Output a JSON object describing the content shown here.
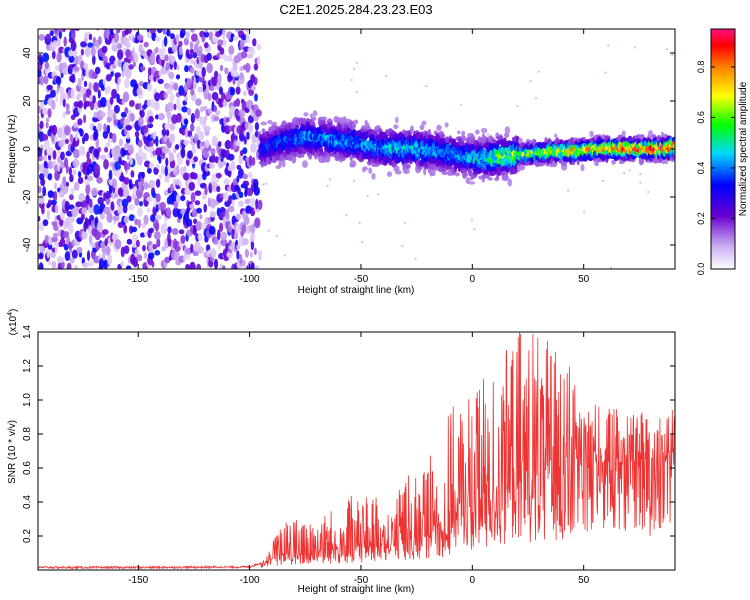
{
  "chart_data": [
    {
      "type": "heatmap",
      "title": "C2E1.2025.284.23.23.E03",
      "xlabel": "Height of straight line (km)",
      "ylabel": "Frequency (Hz)",
      "xlim": [
        -195,
        91
      ],
      "ylim": [
        -50,
        50
      ],
      "xticks": [
        -150,
        -100,
        -50,
        0,
        50
      ],
      "yticks": [
        -40,
        -20,
        0,
        20,
        40
      ],
      "noise_region_x": [
        -195,
        -95
      ],
      "signal_track": {
        "x": [
          -95,
          -85,
          -75,
          -65,
          -55,
          -45,
          -35,
          -25,
          -15,
          -5,
          5,
          15,
          25,
          35,
          45,
          55,
          65,
          75,
          85,
          91
        ],
        "freq_hz": [
          0,
          3,
          5,
          4,
          3,
          1,
          0,
          0,
          -1,
          -3,
          -4,
          -3,
          -2,
          -1,
          -1,
          0,
          0,
          0,
          0,
          1
        ],
        "amplitude": [
          0.25,
          0.3,
          0.35,
          0.35,
          0.35,
          0.35,
          0.4,
          0.4,
          0.35,
          0.35,
          0.45,
          0.55,
          0.6,
          0.65,
          0.7,
          0.75,
          0.8,
          0.85,
          0.85,
          0.85
        ]
      },
      "colorbar": {
        "label": "Normalized spectral amplitude",
        "range": [
          0.0,
          0.95
        ],
        "ticks": [
          0.0,
          0.2,
          0.4,
          0.6,
          0.8
        ],
        "tick_labels": [
          "0.0",
          "0.2",
          "0.4",
          "0.6",
          "0.8"
        ],
        "colors": [
          "#ffffff",
          "#6a00d0",
          "#0000ff",
          "#00d8ff",
          "#00ff00",
          "#ffff00",
          "#ff8000",
          "#ff0000",
          "#ff1080"
        ]
      }
    },
    {
      "type": "line",
      "xlabel": "Height of straight line (km)",
      "ylabel": "SNR (10 * v/v)",
      "y_multiplier_label": "(x10",
      "y_multiplier_exp": "4",
      "y_multiplier_close": ")",
      "xlim": [
        -195,
        91
      ],
      "ylim": [
        0,
        1.4
      ],
      "xticks": [
        -150,
        -100,
        -50,
        0,
        50
      ],
      "yticks": [
        0.2,
        0.4,
        0.6,
        0.8,
        1.0,
        1.2,
        1.4
      ],
      "ytick_labels": [
        "0.2",
        "0.4",
        "0.6",
        "0.8",
        "1.0",
        "1.2",
        "1.4"
      ],
      "series": [
        {
          "name": "SNR",
          "color": "#ee3333",
          "baseline_x": [
            -195,
            -150,
            -100,
            -93,
            -85,
            -70,
            -55,
            -40,
            -30,
            -20,
            -10,
            0,
            10,
            20,
            30,
            40,
            50,
            60,
            70,
            80,
            91
          ],
          "baseline_y": [
            0.015,
            0.015,
            0.018,
            0.05,
            0.09,
            0.11,
            0.13,
            0.15,
            0.17,
            0.2,
            0.28,
            0.38,
            0.45,
            0.5,
            0.55,
            0.6,
            0.62,
            0.63,
            0.64,
            0.65,
            0.68
          ],
          "peak_x": [
            -95,
            -85,
            -70,
            -55,
            -40,
            -30,
            -20,
            -10,
            0,
            10,
            20,
            30,
            40,
            50,
            60,
            70,
            80,
            91
          ],
          "peak_y": [
            0.02,
            0.3,
            0.32,
            0.45,
            0.42,
            0.55,
            0.65,
            0.95,
            1.05,
            1.2,
            1.4,
            1.45,
            1.3,
            1.05,
            0.95,
            0.98,
            0.92,
            0.95
          ]
        }
      ]
    }
  ]
}
